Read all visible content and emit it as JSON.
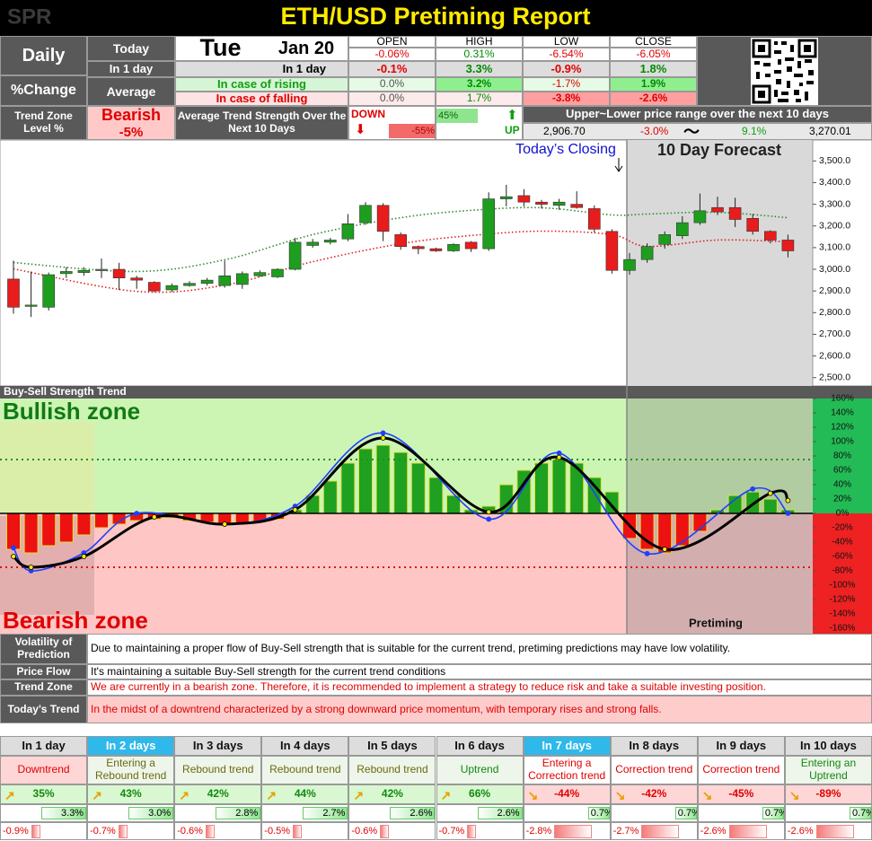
{
  "header": {
    "logo": "SPR",
    "title": "ETH/USD Pretiming Report"
  },
  "summary": {
    "period": "Daily",
    "metric": "%Change",
    "weekday": "Tue",
    "date": "Jan 20",
    "columns": [
      "OPEN",
      "HIGH",
      "LOW",
      "CLOSE"
    ],
    "today": {
      "label": "Today",
      "values": [
        "-0.06%",
        "0.31%",
        "-6.54%",
        "-6.05%"
      ]
    },
    "in_1_day": {
      "label": "In 1 day",
      "sublabel": "In 1 day",
      "values": [
        "-0.1%",
        "3.3%",
        "-0.9%",
        "1.8%"
      ]
    },
    "average": {
      "label": "Average",
      "rising": {
        "label": "In case of rising",
        "values": [
          "0.0%",
          "3.2%",
          "-1.7%",
          "1.9%"
        ]
      },
      "falling": {
        "label": "In case of falling",
        "values": [
          "0.0%",
          "1.7%",
          "-3.8%",
          "-2.6%"
        ]
      }
    }
  },
  "trend_zone": {
    "label": "Trend Zone Level %",
    "zone": "Bearish",
    "level": "-5%",
    "strength_label": "Average Trend Strength Over the Next 10 Days",
    "down_label": "DOWN",
    "down_value": "-55%",
    "up_value": "45%",
    "up_label": "UP",
    "range_label": "Upper~Lower price range over the next 10 days",
    "lower": "2,906.70",
    "lower_pct": "-3.0%",
    "tilde": "〜",
    "upper_pct": "9.1%",
    "upper": "3,270.01"
  },
  "chart_data": [
    {
      "type": "candlestick",
      "annotations": [
        "Today’s Closing",
        "10 Day Forecast"
      ],
      "open": [
        2955,
        2830,
        2825,
        2980,
        2985,
        3000,
        3000,
        2960,
        2940,
        2905,
        2925,
        2935,
        2925,
        2930,
        2970,
        2965,
        3000,
        3110,
        3125,
        3140,
        3215,
        3295,
        3160,
        3105,
        3095,
        3085,
        3125,
        3095,
        3325,
        3340,
        3310,
        3295,
        3300,
        3280,
        3175,
        2995,
        3045,
        3115,
        3155,
        3215,
        3285,
        3285,
        3235,
        3175,
        3135
      ],
      "high": [
        3040,
        2990,
        2985,
        3010,
        3010,
        3050,
        3030,
        2970,
        2945,
        2935,
        2945,
        2960,
        3040,
        2990,
        2995,
        3005,
        3145,
        3140,
        3145,
        3255,
        3310,
        3305,
        3170,
        3110,
        3100,
        3120,
        3130,
        3355,
        3390,
        3370,
        3320,
        3325,
        3360,
        3295,
        3185,
        3075,
        3120,
        3175,
        3245,
        3350,
        3335,
        3330,
        3255,
        3180,
        3160
      ],
      "low": [
        2795,
        2780,
        2810,
        2960,
        2970,
        2960,
        2905,
        2910,
        2895,
        2895,
        2920,
        2925,
        2915,
        2910,
        2965,
        2960,
        2995,
        3100,
        3115,
        3130,
        3205,
        3130,
        3090,
        3070,
        3080,
        3080,
        3080,
        3085,
        3290,
        3290,
        3280,
        3275,
        3280,
        3170,
        2980,
        2975,
        3030,
        3095,
        3140,
        3205,
        3250,
        3195,
        3160,
        3120,
        3055
      ],
      "close": [
        2825,
        2835,
        2975,
        2990,
        2995,
        3000,
        2960,
        2950,
        2900,
        2925,
        2935,
        2950,
        2970,
        2980,
        2985,
        3000,
        3125,
        3125,
        3135,
        3210,
        3295,
        3175,
        3105,
        3095,
        3085,
        3115,
        3095,
        3325,
        3335,
        3310,
        3300,
        3310,
        3285,
        3185,
        2995,
        3045,
        3105,
        3160,
        3215,
        3270,
        3265,
        3230,
        3175,
        3135,
        3085
      ],
      "up_color": "#1e9e1e",
      "down_color": "#e81c1c",
      "series": [
        {
          "color": "#2e8b2e",
          "x": [
            0,
            7,
            12,
            17,
            22,
            26,
            30,
            34,
            36,
            40,
            44
          ],
          "values": [
            3031,
            2990,
            3044,
            3160,
            3238,
            3272,
            3284,
            3251,
            3255,
            3263,
            3238
          ]
        },
        {
          "color": "#e02020",
          "x": [
            0,
            7,
            12,
            17,
            22,
            26,
            30,
            34,
            36,
            40,
            44
          ],
          "values": [
            3002,
            2898,
            2927,
            3035,
            3118,
            3156,
            3176,
            3160,
            3106,
            3135,
            3127
          ]
        }
      ],
      "ylim": [
        2470,
        3580
      ],
      "yticks": [
        {
          "value": 2500,
          "label": "2,500.0"
        },
        {
          "value": 2600,
          "label": "2,600.0"
        },
        {
          "value": 2700,
          "label": "2,700.0"
        },
        {
          "value": 2800,
          "label": "2,800.0"
        },
        {
          "value": 2900,
          "label": "2,900.0"
        },
        {
          "value": 3000,
          "label": "3,000.0"
        },
        {
          "value": 3100,
          "label": "3,100.0"
        },
        {
          "value": 3200,
          "label": "3,200.0"
        },
        {
          "value": 3300,
          "label": "3,300.0"
        },
        {
          "value": 3400,
          "label": "3,400.0"
        },
        {
          "value": 3500,
          "label": "3,500.0"
        }
      ]
    },
    {
      "type": "bar",
      "title": "Buy-Sell Strength Trend",
      "annotations": [
        "Bullish zone",
        "Bearish zone",
        "Pretiming"
      ],
      "values": [
        -50,
        -55,
        -45,
        -40,
        -30,
        -20,
        -15,
        -10,
        -8,
        -6,
        -10,
        -12,
        -14,
        -14,
        -12,
        -8,
        5,
        25,
        45,
        70,
        90,
        95,
        85,
        70,
        50,
        25,
        5,
        10,
        40,
        60,
        70,
        75,
        70,
        50,
        30,
        -35,
        -50,
        -55,
        -45,
        -25,
        5,
        25,
        30,
        20,
        5
      ],
      "positive_color": "#20a020",
      "negative_color": "#ee1111",
      "hlines": [
        {
          "value": 75,
          "color": "#1f8f1f"
        },
        {
          "value": -75,
          "color": "#dd1111"
        }
      ],
      "series": [
        {
          "color": "#1f3fff",
          "x": [
            0,
            1,
            4,
            7,
            12,
            16,
            21,
            27,
            31,
            36,
            42,
            44
          ],
          "values": [
            -48,
            -80,
            -55,
            0,
            -15,
            10,
            112,
            -8,
            84,
            -56,
            34,
            0
          ]
        },
        {
          "color": "#000000",
          "x": [
            0,
            1,
            4,
            8,
            12,
            16,
            21,
            27,
            31,
            37,
            43,
            44
          ],
          "values": [
            -60,
            -75,
            -60,
            -5,
            -15,
            5,
            105,
            2,
            78,
            -50,
            28,
            18
          ]
        }
      ],
      "ylim": [
        -165,
        160
      ],
      "yticks": [
        {
          "value": 160,
          "label": "160%"
        },
        {
          "value": 140,
          "label": "140%"
        },
        {
          "value": 120,
          "label": "120%"
        },
        {
          "value": 100,
          "label": "100%"
        },
        {
          "value": 80,
          "label": "80%"
        },
        {
          "value": 60,
          "label": "60%"
        },
        {
          "value": 40,
          "label": "40%"
        },
        {
          "value": 20,
          "label": "20%"
        },
        {
          "value": 0,
          "label": "0%"
        },
        {
          "value": -20,
          "label": "-20%"
        },
        {
          "value": -40,
          "label": "-40%"
        },
        {
          "value": -60,
          "label": "-60%"
        },
        {
          "value": -80,
          "label": "-80%"
        },
        {
          "value": -100,
          "label": "-100%"
        },
        {
          "value": -120,
          "label": "-120%"
        },
        {
          "value": -140,
          "label": "-140%"
        },
        {
          "value": -160,
          "label": "-160%"
        }
      ]
    }
  ],
  "notes": [
    {
      "label": "Volatility of Prediction",
      "text": "Due to maintaining a proper flow of Buy-Sell strength that is suitable for the current trend, pretiming predictions may have low volatility."
    },
    {
      "label": "Price Flow",
      "text": "It's maintaining a suitable Buy-Sell strength for the current trend conditions"
    },
    {
      "label": "Trend Zone",
      "text": "We are currently in a bearish zone. Therefore, it is recommended to implement a strategy to reduce risk and take a suitable investing position."
    },
    {
      "label": "Today's Trend",
      "text": "In the midst of a downtrend characterized by a strong downward price momentum, with temporary rises and strong falls."
    }
  ],
  "forecast": {
    "days": [
      "In 1 day",
      "In 2 days",
      "In 3 days",
      "In 4 days",
      "In 5 days",
      "In 6 days",
      "In 7 days",
      "In 8 days",
      "In 9 days",
      "In 10 days"
    ],
    "trends": [
      "Downtrend",
      "Entering a Rebound trend",
      "Rebound trend",
      "Rebound trend",
      "Rebound trend",
      "Uptrend",
      "Entering a Correction trend",
      "Correction trend",
      "Correction trend",
      "Entering an Uptrend"
    ],
    "strength": [
      "35%",
      "43%",
      "42%",
      "44%",
      "42%",
      "66%",
      "-44%",
      "-42%",
      "-45%",
      "-89%"
    ],
    "up": [
      "3.3%",
      "3.0%",
      "2.8%",
      "2.7%",
      "2.6%",
      "2.6%",
      "0.7%",
      "0.7%",
      "0.7%",
      "0.7%"
    ],
    "down": [
      "-0.9%",
      "-0.7%",
      "-0.6%",
      "-0.5%",
      "-0.6%",
      "-0.7%",
      "-2.8%",
      "-2.7%",
      "-2.6%",
      "-2.6%"
    ]
  }
}
